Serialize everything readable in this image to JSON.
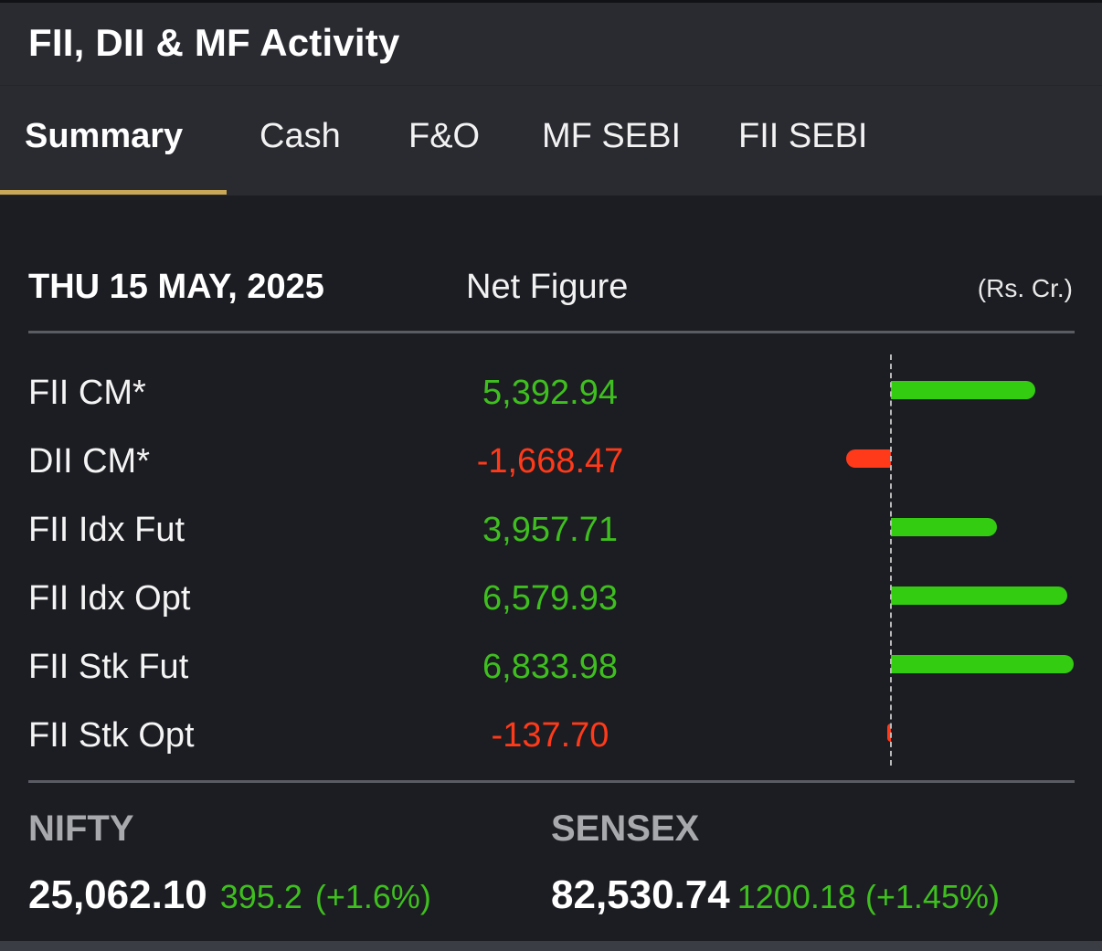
{
  "header": {
    "title": "FII, DII & MF Activity"
  },
  "tabs": [
    {
      "label": "Summary",
      "active": true
    },
    {
      "label": "Cash",
      "active": false
    },
    {
      "label": "F&O",
      "active": false
    },
    {
      "label": "MF SEBI",
      "active": false
    },
    {
      "label": "FII SEBI",
      "active": false
    }
  ],
  "summary": {
    "date": "THU 15 MAY, 2025",
    "column_label": "Net Figure",
    "unit": "(Rs. Cr.)",
    "rows": [
      {
        "label": "FII CM*",
        "value": "5,392.94",
        "amount": 5392.94
      },
      {
        "label": "DII CM*",
        "value": "-1,668.47",
        "amount": -1668.47
      },
      {
        "label": "FII Idx Fut",
        "value": "3,957.71",
        "amount": 3957.71
      },
      {
        "label": "FII Idx Opt",
        "value": "6,579.93",
        "amount": 6579.93
      },
      {
        "label": "FII Stk Fut",
        "value": "6,833.98",
        "amount": 6833.98
      },
      {
        "label": "FII Stk Opt",
        "value": "-137.70",
        "amount": -137.7
      }
    ]
  },
  "indices": {
    "nifty": {
      "name": "NIFTY",
      "price": "25,062.10",
      "change": "395.2",
      "change_pct": "(+1.6%)"
    },
    "sensex": {
      "name": "SENSEX",
      "price": "82,530.74",
      "change": "1200.18",
      "change_pct": "(+1.45%)"
    }
  },
  "colors": {
    "positive": "#33cc11",
    "negative": "#ff3a1a",
    "accent": "#c9a758"
  }
}
